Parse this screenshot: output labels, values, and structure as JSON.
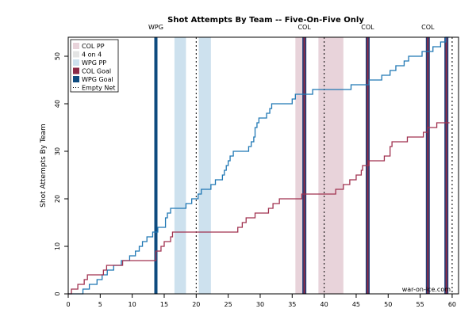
{
  "chart_data": {
    "type": "line",
    "title": "Shot Attempts By Team -- Five-On-Five Only",
    "xlabel": "",
    "ylabel": "Shot Attempts By Team",
    "xlim": [
      0,
      61
    ],
    "ylim": [
      0,
      54
    ],
    "xticks": [
      0,
      5,
      10,
      15,
      20,
      25,
      30,
      35,
      40,
      45,
      50,
      55,
      60
    ],
    "yticks": [
      0,
      10,
      20,
      30,
      40,
      50
    ],
    "period_lines": [
      20,
      40,
      60
    ],
    "period_start": 0,
    "shaded_regions": [
      {
        "type": "WPG PP",
        "start": 16.6,
        "end": 18.4,
        "color": "#cde1ee"
      },
      {
        "type": "WPG PP",
        "start": 20.4,
        "end": 22.3,
        "color": "#cde1ee"
      },
      {
        "type": "COL PP",
        "start": 35.5,
        "end": 37.2,
        "color": "#e8d3da"
      },
      {
        "type": "COL PP",
        "start": 39.1,
        "end": 43.0,
        "color": "#e8d3da"
      }
    ],
    "legend": {
      "placement": "top-left",
      "entries": [
        {
          "label": "COL PP",
          "color": "#e8d3da",
          "kind": "box"
        },
        {
          "label": "4 on 4",
          "color": "#e4e4e4",
          "kind": "box"
        },
        {
          "label": "WPG PP",
          "color": "#cde1ee",
          "kind": "box"
        },
        {
          "label": "COL Goal",
          "color": "#8b2a46",
          "kind": "box"
        },
        {
          "label": "WPG Goal",
          "color": "#0e4b7f",
          "kind": "box"
        },
        {
          "label": "Empty Net",
          "color": "#000000",
          "kind": "dotted"
        }
      ]
    },
    "goals": [
      {
        "team": "WPG",
        "time": 13.7,
        "color": "#0e4b7f"
      },
      {
        "team": "COL",
        "time": 36.9,
        "color": "#8b2a46"
      },
      {
        "team": "COL",
        "time": 46.8,
        "color": "#8b2a46"
      },
      {
        "team": "COL",
        "time": 56.2,
        "color": "#8b2a46"
      },
      {
        "team": "COL",
        "time": 59.1,
        "color": "#8b2a46"
      }
    ],
    "series": [
      {
        "name": "WPG",
        "color": "#1f77b4",
        "points": [
          [
            0,
            0
          ],
          [
            2.3,
            1
          ],
          [
            3.3,
            2
          ],
          [
            4.5,
            3
          ],
          [
            5.3,
            4
          ],
          [
            6.1,
            5
          ],
          [
            7.1,
            6
          ],
          [
            8.3,
            7
          ],
          [
            9.6,
            8
          ],
          [
            10.5,
            9
          ],
          [
            11.1,
            10
          ],
          [
            11.6,
            11
          ],
          [
            12.3,
            12
          ],
          [
            13.2,
            13
          ],
          [
            14.0,
            14
          ],
          [
            15.2,
            16
          ],
          [
            15.5,
            17
          ],
          [
            16.0,
            18
          ],
          [
            18.4,
            19
          ],
          [
            19.3,
            20
          ],
          [
            20.3,
            21
          ],
          [
            20.8,
            22
          ],
          [
            22.3,
            23
          ],
          [
            23.0,
            24
          ],
          [
            24.1,
            25
          ],
          [
            24.4,
            26
          ],
          [
            24.7,
            27
          ],
          [
            25.0,
            28
          ],
          [
            25.3,
            29
          ],
          [
            25.8,
            30
          ],
          [
            28.2,
            31
          ],
          [
            28.6,
            32
          ],
          [
            29.0,
            33
          ],
          [
            29.2,
            35
          ],
          [
            29.5,
            36
          ],
          [
            29.8,
            37
          ],
          [
            31.0,
            38
          ],
          [
            31.5,
            39
          ],
          [
            31.8,
            40
          ],
          [
            35.0,
            41
          ],
          [
            35.5,
            42
          ],
          [
            37.9,
            42
          ],
          [
            38.2,
            43
          ],
          [
            40.5,
            43
          ],
          [
            43.7,
            43
          ],
          [
            44.2,
            44
          ],
          [
            46.5,
            44
          ],
          [
            47.0,
            45
          ],
          [
            49.0,
            46
          ],
          [
            50.3,
            47
          ],
          [
            51.2,
            48
          ],
          [
            52.5,
            49
          ],
          [
            53.2,
            50
          ],
          [
            55.3,
            51
          ],
          [
            57.0,
            52
          ],
          [
            58.2,
            53
          ],
          [
            59.0,
            54
          ],
          [
            59.6,
            54
          ]
        ]
      },
      {
        "name": "COL",
        "color": "#a0314f",
        "points": [
          [
            0,
            0
          ],
          [
            0.5,
            1
          ],
          [
            1.5,
            2
          ],
          [
            2.5,
            3
          ],
          [
            3.0,
            4
          ],
          [
            5.5,
            5
          ],
          [
            6.0,
            6
          ],
          [
            8.5,
            7
          ],
          [
            13.7,
            9
          ],
          [
            14.5,
            10
          ],
          [
            15.0,
            11
          ],
          [
            16.0,
            12
          ],
          [
            16.3,
            13
          ],
          [
            26.0,
            13
          ],
          [
            26.5,
            14
          ],
          [
            27.2,
            15
          ],
          [
            27.8,
            16
          ],
          [
            29.2,
            17
          ],
          [
            31.3,
            18
          ],
          [
            32.0,
            19
          ],
          [
            32.8,
            19
          ],
          [
            33.0,
            20
          ],
          [
            36.0,
            20
          ],
          [
            36.5,
            21
          ],
          [
            41.3,
            21
          ],
          [
            41.8,
            22
          ],
          [
            43.0,
            23
          ],
          [
            44.0,
            24
          ],
          [
            45.0,
            25
          ],
          [
            45.8,
            26
          ],
          [
            46.0,
            27
          ],
          [
            47.0,
            28
          ],
          [
            49.4,
            29
          ],
          [
            50.3,
            31
          ],
          [
            50.6,
            32
          ],
          [
            53.0,
            33
          ],
          [
            55.5,
            34
          ],
          [
            56.2,
            35
          ],
          [
            57.6,
            36
          ],
          [
            59.6,
            36
          ]
        ]
      }
    ],
    "top_labels": [
      {
        "text": "WPG",
        "time": 13.7
      },
      {
        "text": "COL",
        "time": 36.9
      },
      {
        "text": "COL",
        "time": 46.8
      },
      {
        "text": "COL",
        "time": 56.2
      }
    ],
    "watermark": "war-on-ice.com"
  }
}
